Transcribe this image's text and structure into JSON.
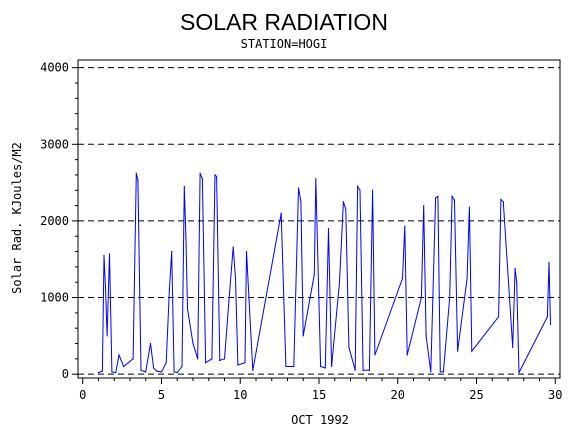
{
  "chart_data": {
    "type": "line",
    "title": "SOLAR RADIATION",
    "subtitle": "STATION=HOGI",
    "xlabel": "OCT 1992",
    "ylabel": "Solar Rad. KJoules/M2",
    "xlim": [
      -0.3,
      30.3
    ],
    "ylim": [
      -50,
      4100
    ],
    "x_ticks": [
      0,
      5,
      10,
      15,
      20,
      25,
      30
    ],
    "x_tick_labels": [
      "0",
      "5",
      "10",
      "15",
      "20",
      "25",
      "30"
    ],
    "y_ticks": [
      0,
      1000,
      2000,
      3000,
      4000
    ],
    "y_tick_labels": [
      "0",
      "1000",
      "2000",
      "3000",
      "4000"
    ],
    "grid": "horizontal-dashed",
    "colors": {
      "series": "#0000ff",
      "axis": "#000000",
      "grid": "#000000"
    },
    "series": [
      {
        "x": [
          1.0,
          1.25,
          1.35,
          1.45,
          1.55,
          1.7,
          1.85,
          2.1,
          2.3,
          2.6,
          3.2,
          3.4,
          3.5,
          3.7,
          4.0,
          4.3,
          4.5,
          4.7,
          5.0,
          5.3,
          5.5,
          5.65,
          5.8,
          6.0,
          6.3,
          6.45,
          6.55,
          6.65,
          7.0,
          7.3,
          7.45,
          7.6,
          7.8,
          8.2,
          8.4,
          8.5,
          8.7,
          9.0,
          9.3,
          9.55,
          9.7,
          9.85,
          10.3,
          10.4,
          10.8,
          12.6,
          12.9,
          13.4,
          13.7,
          13.85,
          14.0,
          14.7,
          14.8,
          15.1,
          15.4,
          15.6,
          15.8,
          16.3,
          16.55,
          16.7,
          16.9,
          17.3,
          17.45,
          17.6,
          17.8,
          18.2,
          18.4,
          18.55,
          20.3,
          20.45,
          20.6,
          21.5,
          21.65,
          21.8,
          22.1,
          22.4,
          22.55,
          22.7,
          22.9,
          23.3,
          23.45,
          23.6,
          23.8,
          24.4,
          24.55,
          24.7,
          26.4,
          26.55,
          26.7,
          27.3,
          27.45,
          27.55,
          27.7,
          29.5,
          29.6,
          29.7
        ],
        "y": [
          20,
          40,
          1550,
          1100,
          500,
          1570,
          30,
          20,
          250,
          100,
          200,
          2620,
          2530,
          50,
          30,
          400,
          80,
          40,
          30,
          150,
          1100,
          1600,
          30,
          20,
          100,
          2450,
          1800,
          850,
          400,
          200,
          2620,
          2550,
          150,
          200,
          2600,
          2580,
          180,
          200,
          1000,
          1660,
          1250,
          120,
          150,
          1600,
          50,
          2100,
          100,
          100,
          2430,
          2250,
          500,
          1300,
          2550,
          100,
          80,
          1900,
          100,
          1200,
          2250,
          2150,
          350,
          50,
          2450,
          2400,
          50,
          50,
          2400,
          250,
          1250,
          1930,
          250,
          1000,
          2200,
          500,
          30,
          2300,
          2320,
          30,
          30,
          1000,
          2320,
          2270,
          300,
          1250,
          2180,
          300,
          750,
          2280,
          2250,
          350,
          1380,
          1200,
          20,
          750,
          1460,
          650
        ]
      }
    ]
  }
}
